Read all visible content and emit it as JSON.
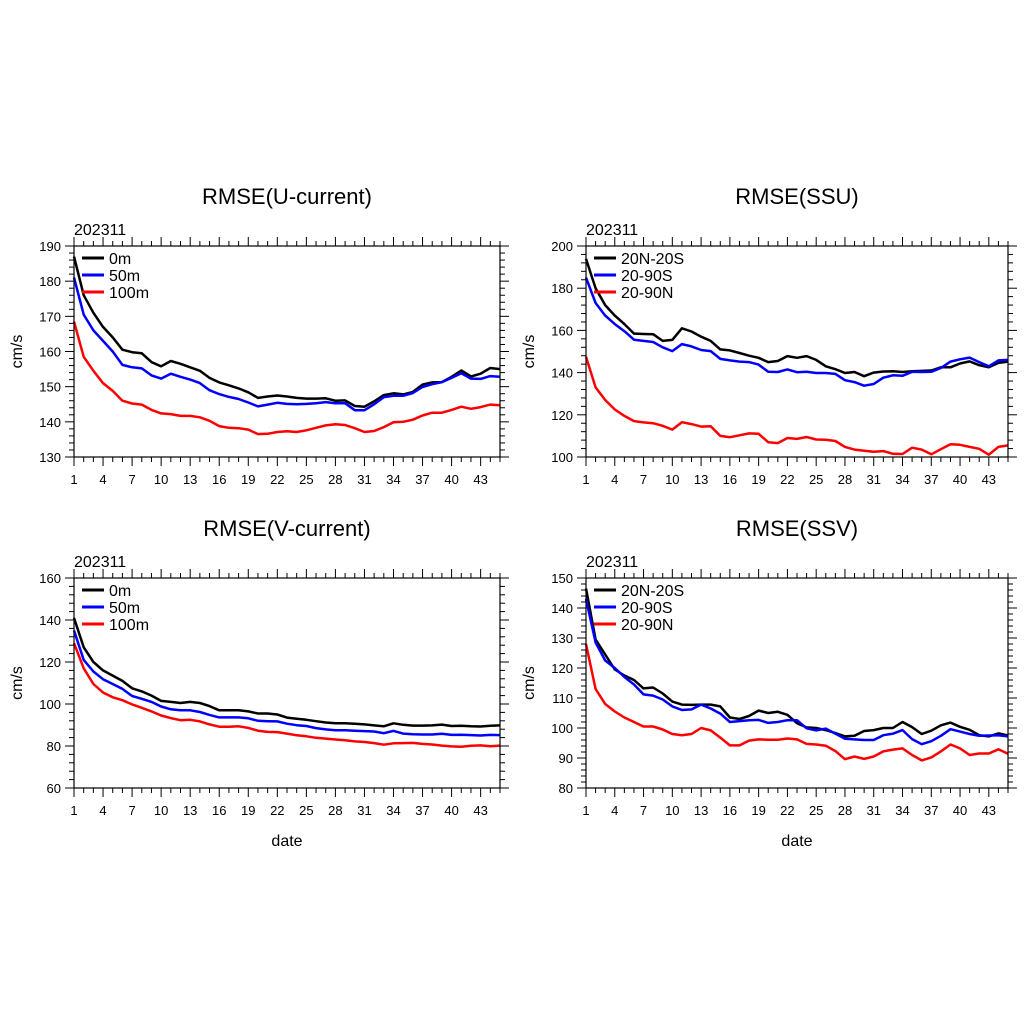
{
  "chart_data": [
    {
      "type": "line",
      "title": "RMSE(U-current)",
      "subtitle": "202311",
      "xlabel": "",
      "ylabel": "cm/s",
      "x": [
        1,
        2,
        3,
        4,
        5,
        6,
        7,
        8,
        9,
        10,
        11,
        12,
        13,
        14,
        15,
        16,
        17,
        18,
        19,
        20,
        21,
        22,
        23,
        24,
        25,
        26,
        27,
        28,
        29,
        30,
        31,
        32,
        33,
        34,
        35,
        36,
        37,
        38,
        39,
        40,
        41,
        42,
        43,
        44,
        45
      ],
      "xlim": [
        1,
        45
      ],
      "xticks": [
        1,
        4,
        7,
        10,
        13,
        16,
        19,
        22,
        25,
        28,
        31,
        34,
        37,
        40,
        43
      ],
      "ylim": [
        130,
        190
      ],
      "yticks": [
        130,
        140,
        150,
        160,
        170,
        180,
        190
      ],
      "legend": "top-left",
      "series": [
        {
          "name": "0m",
          "color": "#000000",
          "values": [
            187,
            176,
            171,
            167,
            164,
            160.5,
            159.8,
            159.5,
            157,
            155.8,
            157.3,
            156.5,
            155.5,
            154.5,
            152.5,
            151.2,
            150.4,
            149.5,
            148.4,
            146.8,
            147.2,
            147.5,
            147.2,
            146.8,
            146.6,
            146.6,
            146.7,
            146,
            146.1,
            144.5,
            144.3,
            145.8,
            147.6,
            148.1,
            147.8,
            148.5,
            150.6,
            151.2,
            151.3,
            152.8,
            154.6,
            152.9,
            153.7,
            155.3,
            155
          ]
        },
        {
          "name": "50m",
          "color": "#0000ff",
          "values": [
            181,
            170.5,
            166,
            163,
            160,
            156.2,
            155.5,
            155.2,
            153.2,
            152.3,
            153.7,
            152.8,
            152,
            151,
            149,
            147.9,
            147.1,
            146.5,
            145.5,
            144.4,
            144.9,
            145.4,
            145.1,
            145,
            145.1,
            145.3,
            145.6,
            145.3,
            145.3,
            143.3,
            143.3,
            145,
            147,
            147.4,
            147.4,
            148.2,
            149.9,
            150.7,
            151.3,
            152.5,
            153.8,
            152.3,
            152.2,
            153,
            152.8
          ]
        },
        {
          "name": "100m",
          "color": "#ff0000",
          "values": [
            168.5,
            158.5,
            154.5,
            151,
            148.8,
            146,
            145.2,
            144.9,
            143.4,
            142.4,
            142.2,
            141.7,
            141.7,
            141.3,
            140.3,
            138.8,
            138.3,
            138.2,
            137.8,
            136.5,
            136.6,
            137.1,
            137.3,
            137.1,
            137.6,
            138.3,
            139,
            139.3,
            139.1,
            138.2,
            137.1,
            137.4,
            138.5,
            139.9,
            140,
            140.6,
            141.8,
            142.6,
            142.6,
            143.4,
            144.3,
            143.7,
            144.2,
            144.9,
            144.7
          ]
        }
      ]
    },
    {
      "type": "line",
      "title": "RMSE(SSU)",
      "subtitle": "202311",
      "xlabel": "",
      "ylabel": "cm/s",
      "x": [
        1,
        2,
        3,
        4,
        5,
        6,
        7,
        8,
        9,
        10,
        11,
        12,
        13,
        14,
        15,
        16,
        17,
        18,
        19,
        20,
        21,
        22,
        23,
        24,
        25,
        26,
        27,
        28,
        29,
        30,
        31,
        32,
        33,
        34,
        35,
        36,
        37,
        38,
        39,
        40,
        41,
        42,
        43,
        44,
        45
      ],
      "xlim": [
        1,
        45
      ],
      "xticks": [
        1,
        4,
        7,
        10,
        13,
        16,
        19,
        22,
        25,
        28,
        31,
        34,
        37,
        40,
        43
      ],
      "ylim": [
        100,
        200
      ],
      "yticks": [
        100,
        120,
        140,
        160,
        180,
        200
      ],
      "legend": "top-left",
      "series": [
        {
          "name": "20N-20S",
          "color": "#000000",
          "values": [
            194,
            180,
            172,
            167,
            163,
            158.5,
            158.3,
            158.2,
            155,
            155.5,
            161,
            159.5,
            157,
            155,
            151,
            150.5,
            149.3,
            148,
            147,
            145,
            145.5,
            147.8,
            147,
            147.8,
            146,
            143,
            141.6,
            139.8,
            140.3,
            138.3,
            140,
            140.5,
            140.6,
            140.3,
            140.6,
            140.8,
            141,
            142.5,
            142.5,
            144.3,
            145.3,
            143.5,
            142.5,
            144.6,
            145.2
          ]
        },
        {
          "name": "20-90S",
          "color": "#0000ff",
          "values": [
            185,
            173,
            167,
            163,
            159.6,
            155.6,
            155,
            154.5,
            152,
            150.2,
            153.5,
            152.4,
            150.7,
            150.2,
            146.5,
            145.8,
            145.2,
            145,
            143.8,
            140.4,
            140.3,
            141.5,
            140.2,
            140.4,
            139.8,
            139.8,
            139.4,
            136.4,
            135.5,
            133.8,
            134.6,
            137.6,
            138.7,
            138.5,
            140.4,
            140.3,
            140.4,
            142.2,
            145.2,
            146.3,
            147.1,
            145,
            143,
            145.8,
            146
          ]
        },
        {
          "name": "20-90N",
          "color": "#ff0000",
          "values": [
            147.5,
            133,
            127,
            122.5,
            119.5,
            117,
            116.4,
            116,
            114.8,
            113,
            116.5,
            115.6,
            114.4,
            114.6,
            110,
            109.4,
            110.3,
            111.2,
            111,
            107,
            106.6,
            109,
            108.6,
            109.5,
            108.3,
            108.2,
            107.6,
            104.8,
            103.5,
            103,
            102.5,
            102.8,
            101.5,
            101.4,
            104.4,
            103.5,
            101.3,
            103.7,
            106,
            105.8,
            104.8,
            103.9,
            101.1,
            104.8,
            105.5
          ]
        }
      ]
    },
    {
      "type": "line",
      "title": "RMSE(V-current)",
      "subtitle": "202311",
      "xlabel": "date",
      "ylabel": "cm/s",
      "x": [
        1,
        2,
        3,
        4,
        5,
        6,
        7,
        8,
        9,
        10,
        11,
        12,
        13,
        14,
        15,
        16,
        17,
        18,
        19,
        20,
        21,
        22,
        23,
        24,
        25,
        26,
        27,
        28,
        29,
        30,
        31,
        32,
        33,
        34,
        35,
        36,
        37,
        38,
        39,
        40,
        41,
        42,
        43,
        44,
        45
      ],
      "xlim": [
        1,
        45
      ],
      "xticks": [
        1,
        4,
        7,
        10,
        13,
        16,
        19,
        22,
        25,
        28,
        31,
        34,
        37,
        40,
        43
      ],
      "ylim": [
        60,
        160
      ],
      "yticks": [
        60,
        80,
        100,
        120,
        140,
        160
      ],
      "legend": "top-left",
      "series": [
        {
          "name": "0m",
          "color": "#000000",
          "values": [
            141,
            127,
            120,
            116,
            113.5,
            111,
            107.5,
            106,
            104,
            101.5,
            101,
            100.5,
            101,
            100.5,
            99,
            97,
            97,
            97,
            96.5,
            95.5,
            95.5,
            95,
            93.5,
            93,
            92.5,
            91.8,
            91.2,
            90.8,
            90.8,
            90.6,
            90.3,
            89.8,
            89.4,
            90.8,
            90.1,
            89.7,
            89.7,
            89.8,
            90.2,
            89.5,
            89.6,
            89.4,
            89.3,
            89.6,
            89.8
          ]
        },
        {
          "name": "50m",
          "color": "#0000ff",
          "values": [
            135,
            121,
            115.5,
            111.8,
            109.5,
            107.2,
            103.8,
            102.5,
            101,
            98.8,
            97.5,
            97,
            97,
            96.2,
            94.8,
            93.6,
            93.6,
            93.6,
            93.2,
            92,
            91.8,
            91.7,
            90.6,
            89.9,
            89.5,
            88.5,
            87.9,
            87.5,
            87.5,
            87.3,
            87.1,
            86.9,
            86.1,
            87.2,
            85.9,
            85.6,
            85.5,
            85.5,
            85.8,
            85.3,
            85.4,
            85.2,
            85,
            85.3,
            85.2
          ]
        },
        {
          "name": "100m",
          "color": "#ff0000",
          "values": [
            129,
            117,
            109.5,
            105.5,
            103.2,
            101.8,
            99.8,
            98.2,
            96.5,
            94.5,
            93.3,
            92.3,
            92.5,
            91.7,
            90.3,
            89.2,
            89.2,
            89.4,
            88.6,
            87.3,
            86.7,
            86.6,
            85.9,
            85.1,
            84.6,
            83.9,
            83.5,
            83.1,
            82.7,
            82.2,
            81.9,
            81.4,
            80.6,
            81.3,
            81.4,
            81.5,
            81,
            80.7,
            80.2,
            79.8,
            79.6,
            80.1,
            80.3,
            79.9,
            80.2
          ]
        }
      ]
    },
    {
      "type": "line",
      "title": "RMSE(SSV)",
      "subtitle": "202311",
      "xlabel": "date",
      "ylabel": "cm/s",
      "x": [
        1,
        2,
        3,
        4,
        5,
        6,
        7,
        8,
        9,
        10,
        11,
        12,
        13,
        14,
        15,
        16,
        17,
        18,
        19,
        20,
        21,
        22,
        23,
        24,
        25,
        26,
        27,
        28,
        29,
        30,
        31,
        32,
        33,
        34,
        35,
        36,
        37,
        38,
        39,
        40,
        41,
        42,
        43,
        44,
        45
      ],
      "xlim": [
        1,
        45
      ],
      "xticks": [
        1,
        4,
        7,
        10,
        13,
        16,
        19,
        22,
        25,
        28,
        31,
        34,
        37,
        40,
        43
      ],
      "ylim": [
        80,
        150
      ],
      "yticks": [
        80,
        90,
        100,
        110,
        120,
        130,
        140,
        150
      ],
      "legend": "top-left",
      "series": [
        {
          "name": "20N-20S",
          "color": "#000000",
          "values": [
            146.5,
            129.5,
            124.5,
            119.5,
            117.5,
            116,
            113.2,
            113.5,
            111.5,
            108.8,
            107.8,
            107.7,
            107.8,
            107.8,
            107.2,
            103.5,
            103,
            104,
            105.8,
            105,
            105.4,
            104.4,
            101.6,
            100.2,
            100,
            99.3,
            98.3,
            97.2,
            97.4,
            99,
            99.3,
            100,
            100,
            102,
            100.3,
            98,
            99.1,
            100.9,
            101.8,
            100.4,
            99.4,
            97.6,
            97.2,
            98.2,
            97.5
          ]
        },
        {
          "name": "20-90S",
          "color": "#0000ff",
          "values": [
            143,
            128.5,
            122.5,
            120,
            117,
            114.5,
            111.2,
            110.8,
            109.5,
            107.2,
            106,
            106.2,
            107.8,
            106.5,
            104.8,
            102,
            102.3,
            102.6,
            102.7,
            101.7,
            102,
            102.6,
            102.6,
            99.9,
            99.2,
            99.8,
            98.1,
            96.4,
            96.2,
            96,
            96,
            97.6,
            98.1,
            99.3,
            96.3,
            94.6,
            95.6,
            97.4,
            99.6,
            98.8,
            98,
            97.4,
            97.5,
            97.6,
            97.2
          ]
        },
        {
          "name": "20-90N",
          "color": "#ff0000",
          "values": [
            128,
            113,
            108,
            105.5,
            103.5,
            102,
            100.5,
            100.5,
            99.5,
            98,
            97.6,
            98,
            100,
            99.2,
            96.8,
            94.2,
            94.2,
            95.8,
            96.2,
            96.1,
            96.1,
            96.5,
            96.2,
            94.7,
            94.5,
            94.1,
            92.3,
            89.6,
            90.5,
            89.7,
            90.5,
            92.2,
            92.8,
            93.2,
            91,
            89.2,
            90.2,
            92.2,
            94.5,
            93.2,
            91,
            91.5,
            91.5,
            92.9,
            91.4
          ]
        }
      ]
    }
  ]
}
